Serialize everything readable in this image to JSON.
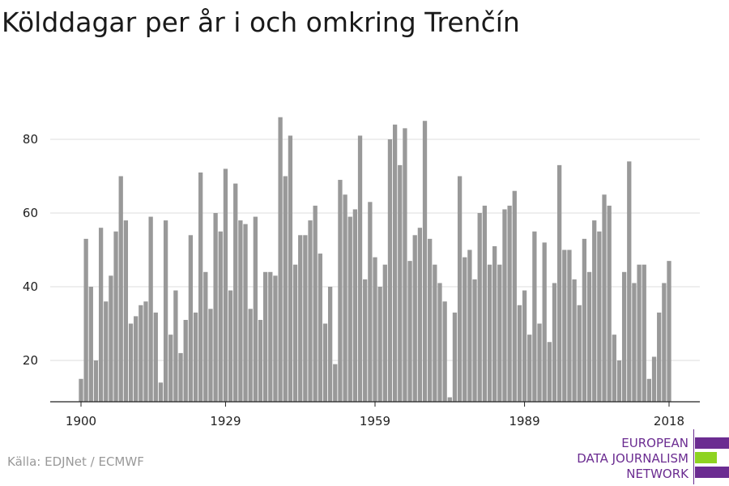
{
  "chart_data": {
    "type": "bar",
    "title": "Kölddagar per år i och omkring Trenčín",
    "xlabel": "",
    "ylabel": "",
    "x_start": 1900,
    "x_end": 2018,
    "x_ticks": [
      1900,
      1929,
      1959,
      1989,
      2018
    ],
    "y_ticks": [
      20,
      40,
      60,
      80
    ],
    "ylim": [
      8.5,
      88
    ],
    "grid": true,
    "bar_color": "#999999",
    "values": [
      15,
      53,
      40,
      20,
      56,
      36,
      43,
      55,
      70,
      58,
      30,
      32,
      35,
      36,
      59,
      33,
      14,
      58,
      27,
      39,
      22,
      31,
      54,
      33,
      71,
      44,
      34,
      60,
      55,
      72,
      39,
      68,
      58,
      57,
      34,
      59,
      31,
      44,
      44,
      43,
      86,
      70,
      81,
      46,
      54,
      54,
      58,
      62,
      49,
      30,
      40,
      19,
      69,
      65,
      59,
      61,
      81,
      42,
      63,
      48,
      40,
      46,
      80,
      84,
      73,
      83,
      47,
      54,
      56,
      85,
      53,
      46,
      41,
      36,
      10,
      33,
      70,
      48,
      50,
      42,
      60,
      62,
      46,
      51,
      46,
      61,
      62,
      66,
      35,
      39,
      27,
      55,
      30,
      52,
      25,
      41,
      73,
      50,
      50,
      42,
      35,
      53,
      44,
      58,
      55,
      65,
      62,
      27,
      20,
      44,
      74,
      41,
      46,
      46,
      15,
      21,
      33,
      41,
      47
    ]
  },
  "source": "Källa: EDJNet / ECMWF",
  "logo": {
    "line1": "EUROPEAN",
    "line2": "DATA JOURNALISM",
    "line3": "NETWORK",
    "color_purple": "#6b2c91",
    "color_green": "#8ed321"
  }
}
